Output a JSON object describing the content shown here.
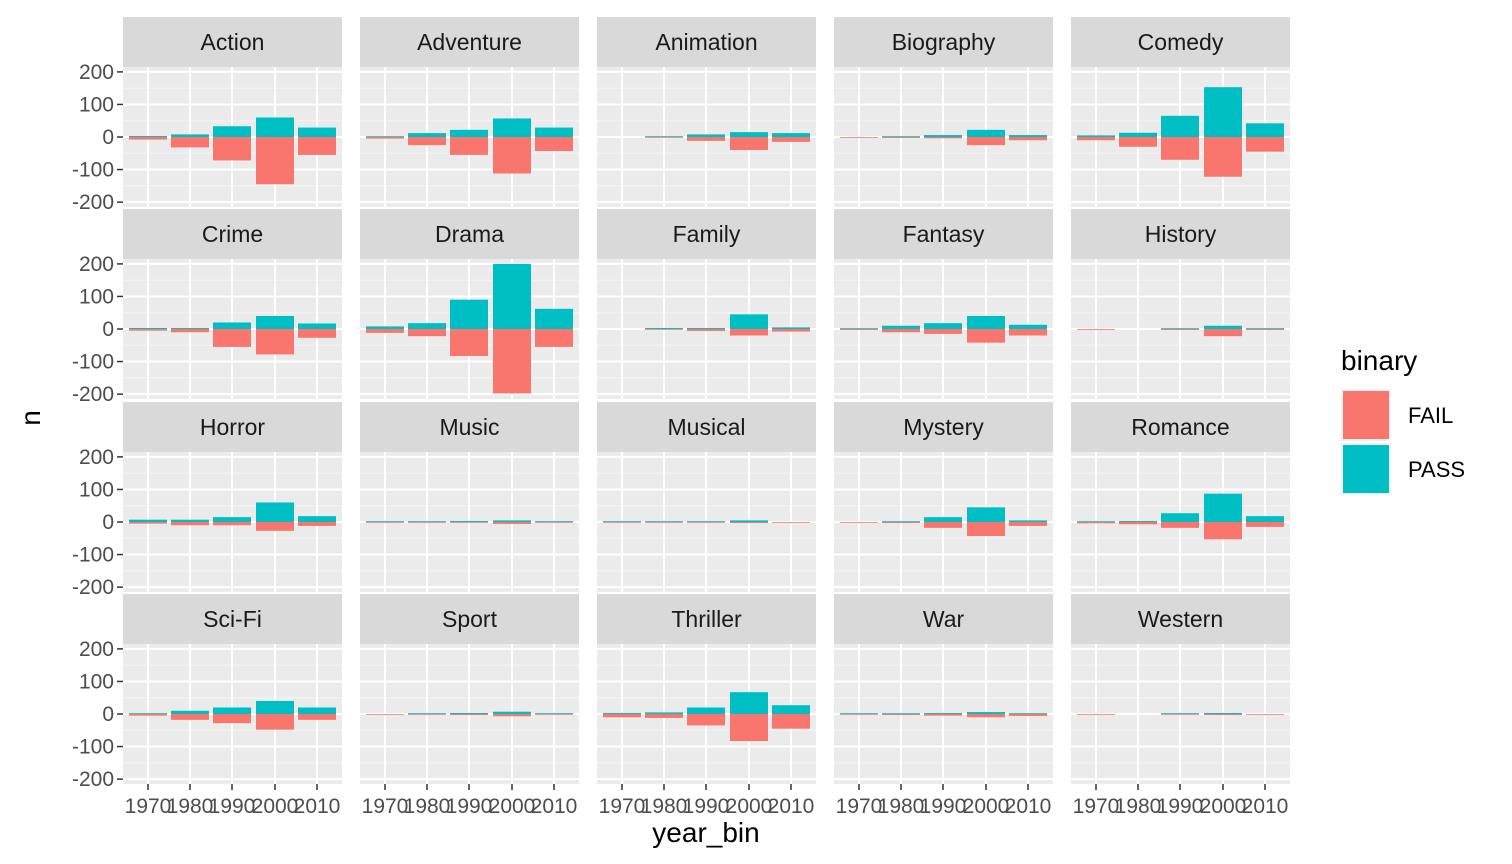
{
  "chart_data": {
    "type": "bar",
    "subtype": "diverging-stacked-facets",
    "xlabel": "year_bin",
    "ylabel": "n",
    "categories": [
      "1970",
      "1980",
      "1990",
      "2000",
      "2010"
    ],
    "y_ticks": [
      -200,
      -100,
      0,
      100,
      200
    ],
    "y_tick_labels": [
      "-200",
      "-100",
      "0",
      "100",
      "200"
    ],
    "ylim": [
      -215,
      215
    ],
    "grid": true,
    "legend": {
      "title": "binary",
      "position": "right",
      "entries": [
        {
          "label": "FAIL",
          "color": "#F8766D"
        },
        {
          "label": "PASS",
          "color": "#00BFC4"
        }
      ]
    },
    "colors": {
      "FAIL": "#F8766D",
      "PASS": "#00BFC4",
      "panel_bg": "#EBEBEB",
      "strip_bg": "#D9D9D9",
      "grid": "#FFFFFF"
    },
    "facets": [
      {
        "name": "Action",
        "FAIL": [
          -8,
          -32,
          -72,
          -145,
          -55
        ],
        "PASS": [
          3,
          8,
          33,
          60,
          29
        ]
      },
      {
        "name": "Adventure",
        "FAIL": [
          -5,
          -25,
          -55,
          -112,
          -43
        ],
        "PASS": [
          2,
          12,
          22,
          57,
          29
        ]
      },
      {
        "name": "Animation",
        "FAIL": [
          0,
          -2,
          -12,
          -40,
          -15
        ],
        "PASS": [
          0,
          2,
          8,
          15,
          12
        ]
      },
      {
        "name": "Biography",
        "FAIL": [
          -1,
          -3,
          -4,
          -25,
          -10
        ],
        "PASS": [
          0,
          2,
          6,
          22,
          6
        ]
      },
      {
        "name": "Comedy",
        "FAIL": [
          -10,
          -30,
          -70,
          -122,
          -45
        ],
        "PASS": [
          5,
          13,
          65,
          153,
          42
        ]
      },
      {
        "name": "Crime",
        "FAIL": [
          -5,
          -10,
          -55,
          -78,
          -27
        ],
        "PASS": [
          3,
          3,
          20,
          40,
          17
        ]
      },
      {
        "name": "Drama",
        "FAIL": [
          -12,
          -22,
          -83,
          -198,
          -55
        ],
        "PASS": [
          8,
          18,
          90,
          200,
          62
        ]
      },
      {
        "name": "Family",
        "FAIL": [
          0,
          -2,
          -6,
          -20,
          -8
        ],
        "PASS": [
          0,
          3,
          3,
          45,
          5
        ]
      },
      {
        "name": "Fantasy",
        "FAIL": [
          -3,
          -10,
          -15,
          -42,
          -20
        ],
        "PASS": [
          1,
          10,
          18,
          40,
          13
        ]
      },
      {
        "name": "History",
        "FAIL": [
          -1,
          0,
          -3,
          -22,
          -3
        ],
        "PASS": [
          0,
          0,
          2,
          10,
          2
        ]
      },
      {
        "name": "Horror",
        "FAIL": [
          -5,
          -10,
          -10,
          -27,
          -12
        ],
        "PASS": [
          7,
          7,
          15,
          60,
          18
        ]
      },
      {
        "name": "Music",
        "FAIL": [
          -1,
          -1,
          -2,
          -6,
          -1
        ],
        "PASS": [
          1,
          1,
          3,
          5,
          1
        ]
      },
      {
        "name": "Musical",
        "FAIL": [
          -1,
          -2,
          -1,
          -3,
          -1
        ],
        "PASS": [
          2,
          1,
          2,
          5,
          0
        ]
      },
      {
        "name": "Mystery",
        "FAIL": [
          -2,
          -3,
          -18,
          -43,
          -12
        ],
        "PASS": [
          0,
          1,
          15,
          45,
          5
        ]
      },
      {
        "name": "Romance",
        "FAIL": [
          -4,
          -7,
          -18,
          -53,
          -15
        ],
        "PASS": [
          2,
          3,
          27,
          87,
          18
        ]
      },
      {
        "name": "Sci-Fi",
        "FAIL": [
          -5,
          -18,
          -28,
          -48,
          -18
        ],
        "PASS": [
          2,
          10,
          20,
          40,
          20
        ]
      },
      {
        "name": "Sport",
        "FAIL": [
          -2,
          -2,
          -3,
          -7,
          -1
        ],
        "PASS": [
          0,
          2,
          3,
          7,
          1
        ]
      },
      {
        "name": "Thriller",
        "FAIL": [
          -10,
          -12,
          -35,
          -83,
          -45
        ],
        "PASS": [
          3,
          5,
          20,
          67,
          27
        ]
      },
      {
        "name": "War",
        "FAIL": [
          -2,
          -3,
          -5,
          -10,
          -6
        ],
        "PASS": [
          1,
          2,
          3,
          6,
          2
        ]
      },
      {
        "name": "Western",
        "FAIL": [
          -2,
          0,
          -2,
          -3,
          -2
        ],
        "PASS": [
          0,
          0,
          1,
          3,
          0
        ]
      }
    ]
  }
}
